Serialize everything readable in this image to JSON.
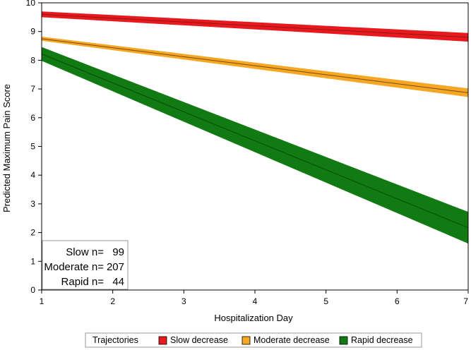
{
  "chart_data": {
    "type": "line",
    "xlabel": "Hospitalization Day",
    "ylabel": "Predicted Maximum Pain Score",
    "xlim": [
      1,
      7
    ],
    "ylim": [
      0,
      10
    ],
    "x_ticks": [
      "1",
      "2",
      "3",
      "4",
      "5",
      "6",
      "7"
    ],
    "y_ticks": [
      "0",
      "1",
      "2",
      "3",
      "4",
      "5",
      "6",
      "7",
      "8",
      "9",
      "10"
    ],
    "x": [
      1,
      7
    ],
    "series": [
      {
        "name": "Slow decrease",
        "color": "#e8191e",
        "line_color": "#8b1a10",
        "values": [
          9.6,
          8.8
        ],
        "lower": [
          9.5,
          8.65
        ],
        "upper": [
          9.7,
          8.95
        ]
      },
      {
        "name": "Moderate decrease",
        "color": "#f5a623",
        "line_color": "#7a4a0a",
        "values": [
          8.75,
          6.87
        ],
        "lower": [
          8.68,
          6.72
        ],
        "upper": [
          8.82,
          7.02
        ]
      },
      {
        "name": "Rapid decrease",
        "color": "#127a12",
        "line_color": "#0a4a0a",
        "values": [
          8.22,
          2.17
        ],
        "lower": [
          7.98,
          1.62
        ],
        "upper": [
          8.46,
          2.72
        ]
      }
    ],
    "inset": [
      {
        "label": "Slow n=",
        "value": "99"
      },
      {
        "label": "Moderate n=",
        "value": "207"
      },
      {
        "label": "Rapid n=",
        "value": "44"
      }
    ],
    "legend": {
      "title": "Trajectories",
      "placement": "bottom",
      "items": [
        "Slow decrease",
        "Moderate decrease",
        "Rapid decrease"
      ]
    },
    "grid": false
  }
}
